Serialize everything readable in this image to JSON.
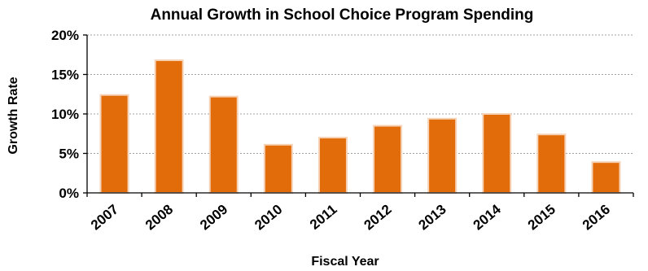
{
  "chart_data": {
    "type": "bar",
    "title": "Annual Growth in School Choice Program Spending",
    "xlabel": "Fiscal Year",
    "ylabel": "Growth Rate",
    "categories": [
      "2007",
      "2008",
      "2009",
      "2010",
      "2011",
      "2012",
      "2013",
      "2014",
      "2015",
      "2016"
    ],
    "values": [
      12.4,
      16.8,
      12.2,
      6.1,
      7.0,
      8.5,
      9.4,
      10.0,
      7.4,
      3.9
    ],
    "ylim": [
      0,
      20
    ],
    "yticks": [
      0,
      5,
      10,
      15,
      20
    ],
    "ytick_labels": [
      "0%",
      "5%",
      "10%",
      "15%",
      "20%"
    ],
    "grid": true,
    "colors": {
      "bar": "#e36c0a",
      "bar_edge": "#f6d2b6"
    }
  }
}
